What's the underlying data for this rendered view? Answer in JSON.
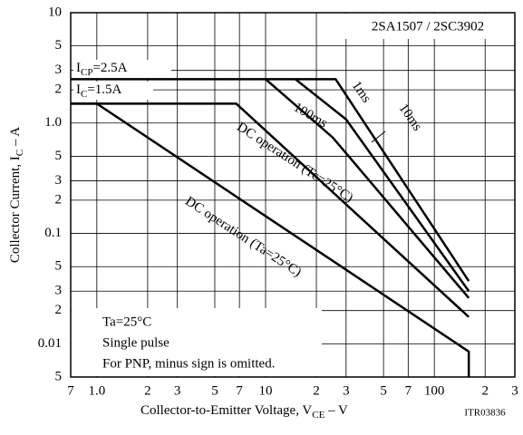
{
  "chart_data": {
    "type": "line",
    "log_x": true,
    "log_y": true,
    "grid": true,
    "part_number": "2SA1507 / 2SC3902",
    "code": "ITR03836",
    "x_label": [
      "Collector-to-Emitter Voltage, V",
      "CE",
      " – V"
    ],
    "y_label": [
      "Collector Current, I",
      "C",
      " – A"
    ],
    "annotations": [
      [
        "I",
        "CP",
        "=2.5A"
      ],
      [
        "I",
        "C",
        "=1.5A"
      ]
    ],
    "notes": [
      "Ta=25°C",
      "Single pulse",
      "For PNP, minus sign is omitted."
    ],
    "xlim": [
      0.7,
      300
    ],
    "ylim": [
      0.005,
      10
    ],
    "xticks": [
      {
        "value": 0.7,
        "label": "7"
      },
      {
        "value": 1,
        "label": "1.0"
      },
      2,
      3,
      5,
      7,
      10,
      {
        "value": 20,
        "label": "2"
      },
      {
        "value": 30,
        "label": "3"
      },
      {
        "value": 50,
        "label": "5"
      },
      {
        "value": 70,
        "label": "7"
      },
      100,
      {
        "value": 200,
        "label": "2"
      },
      {
        "value": 300,
        "label": "3"
      }
    ],
    "yticks": [
      10,
      5,
      3,
      2,
      {
        "value": 1,
        "label": "1.0"
      },
      {
        "value": 0.5,
        "label": "5"
      },
      {
        "value": 0.3,
        "label": "3"
      },
      {
        "value": 0.2,
        "label": "2"
      },
      0.1,
      {
        "value": 0.05,
        "label": "5"
      },
      {
        "value": 0.03,
        "label": "3"
      },
      {
        "value": 0.02,
        "label": "2"
      },
      0.01,
      {
        "value": 0.005,
        "label": "5"
      }
    ],
    "series": [
      {
        "name": "1ms",
        "color": "#000000",
        "x": [
          0.7,
          26,
          160
        ],
        "values": [
          2.5,
          2.5,
          0.037
        ]
      },
      {
        "name": "10ms",
        "color": "#000000",
        "x": [
          15,
          30,
          160
        ],
        "values": [
          2.5,
          1.08,
          0.03
        ]
      },
      {
        "name": "100ms",
        "color": "#000000",
        "x": [
          10,
          25,
          160
        ],
        "values": [
          2.5,
          0.74,
          0.026
        ]
      },
      {
        "name": "DC operation (Tc=25°C)",
        "color": "#000000",
        "x": [
          0.7,
          6.7,
          160
        ],
        "values": [
          1.5,
          1.5,
          0.0175
        ]
      },
      {
        "name": "DC operation (Ta=25°C)",
        "color": "#000000",
        "x": [
          0.7,
          1,
          160,
          160
        ],
        "values": [
          1.5,
          1.5,
          0.0085,
          0.005
        ]
      }
    ]
  }
}
